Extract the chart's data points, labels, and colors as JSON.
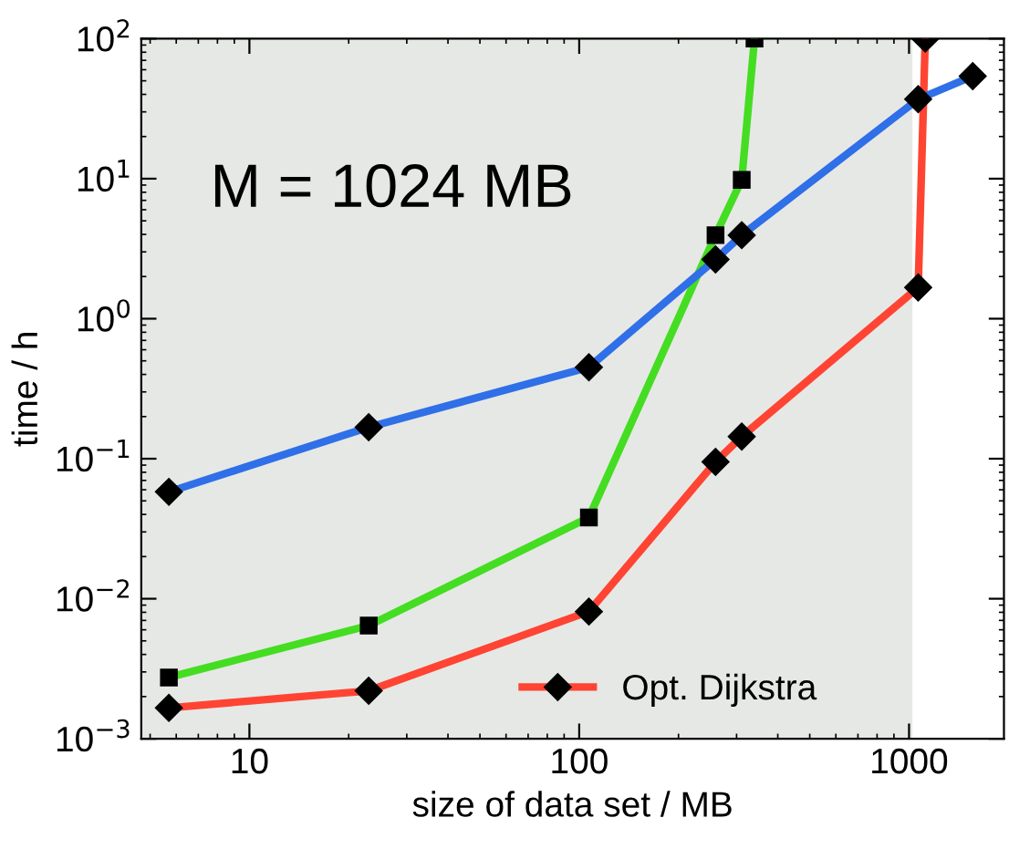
{
  "chart_data": {
    "type": "line",
    "xlabel": "size of data set / MB",
    "ylabel": "time / h",
    "log": "xy",
    "xlim": [
      4.7,
      1940
    ],
    "ylim": [
      0.001,
      100
    ],
    "xticks": [
      10,
      100,
      1000
    ],
    "yticks": [
      {
        "value": 0.001,
        "label": "10$^{−3}$"
      },
      {
        "value": 0.01,
        "label": "10$^{−2}$"
      },
      {
        "value": 0.1,
        "label": "10$^{−1}$"
      },
      {
        "value": 1,
        "label": "10$^{0}$"
      },
      {
        "value": 10,
        "label": "10$^{1}$"
      },
      {
        "value": 100,
        "label": "10$^{2}$"
      }
    ],
    "series": [
      {
        "color": "#44dd22",
        "marker": "square",
        "x": [
          5.7,
          23,
          107,
          259,
          311,
          340
        ],
        "values": [
          0.00274,
          0.00644,
          0.038,
          3.95,
          9.8,
          100
        ]
      },
      {
        "name": "Opt. Dijkstra",
        "color": "#ff4433",
        "marker": "diamond",
        "x": [
          5.7,
          23,
          107,
          259,
          311,
          1066,
          1120
        ],
        "values": [
          0.00166,
          0.0022,
          0.0081,
          0.095,
          0.144,
          1.67,
          100
        ]
      },
      {
        "color": "#2f6fe8",
        "marker": "diamond",
        "x": [
          5.7,
          23,
          107,
          259,
          311,
          1066,
          1560
        ],
        "values": [
          0.058,
          0.168,
          0.45,
          2.65,
          3.95,
          37,
          54
        ]
      }
    ],
    "bands": [
      {
        "axis": "x",
        "from": 4.7,
        "to": 1024,
        "color": "#e6e8e5"
      }
    ],
    "annotations": [
      "M = 1024 MB"
    ],
    "legend": "bottom right",
    "grid": false
  }
}
